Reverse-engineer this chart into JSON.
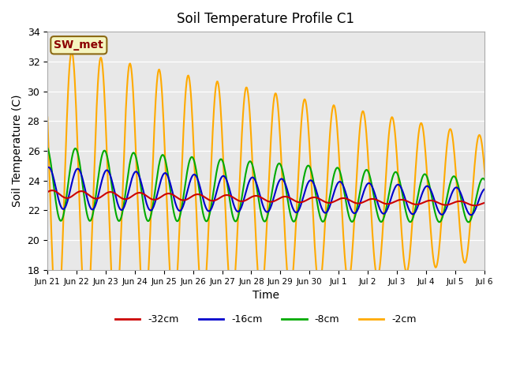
{
  "title": "Soil Temperature Profile C1",
  "xlabel": "Time",
  "ylabel": "Soil Temperature (C)",
  "ylim": [
    18,
    34
  ],
  "figsize": [
    6.4,
    4.8
  ],
  "dpi": 100,
  "bg_color": "#e8e8e8",
  "annotation_text": "SW_met",
  "annotation_bg": "#f5f5c0",
  "annotation_edge": "#8b6914",
  "annotation_text_color": "#8b0000",
  "series_order": [
    "-2cm",
    "-8cm",
    "-16cm",
    "-32cm"
  ],
  "series": {
    "-32cm": {
      "color": "#cc0000",
      "linewidth": 1.5
    },
    "-16cm": {
      "color": "#0000cc",
      "linewidth": 1.5
    },
    "-8cm": {
      "color": "#00aa00",
      "linewidth": 1.5
    },
    "-2cm": {
      "color": "#ffaa00",
      "linewidth": 1.5
    }
  },
  "xtick_labels": [
    "Jun 21",
    "Jun 22",
    "Jun 23",
    "Jun 24",
    "Jun 25",
    "Jun 26",
    "Jun 27",
    "Jun 28",
    "Jun 29",
    "Jun 30",
    "Jul 1",
    "Jul 2",
    "Jul 3",
    "Jul 4",
    "Jul 5",
    "Jul 6"
  ],
  "legend_labels": [
    "-32cm",
    "-16cm",
    "-8cm",
    "-2cm"
  ],
  "legend_colors": [
    "#cc0000",
    "#0000cc",
    "#00aa00",
    "#ffaa00"
  ]
}
